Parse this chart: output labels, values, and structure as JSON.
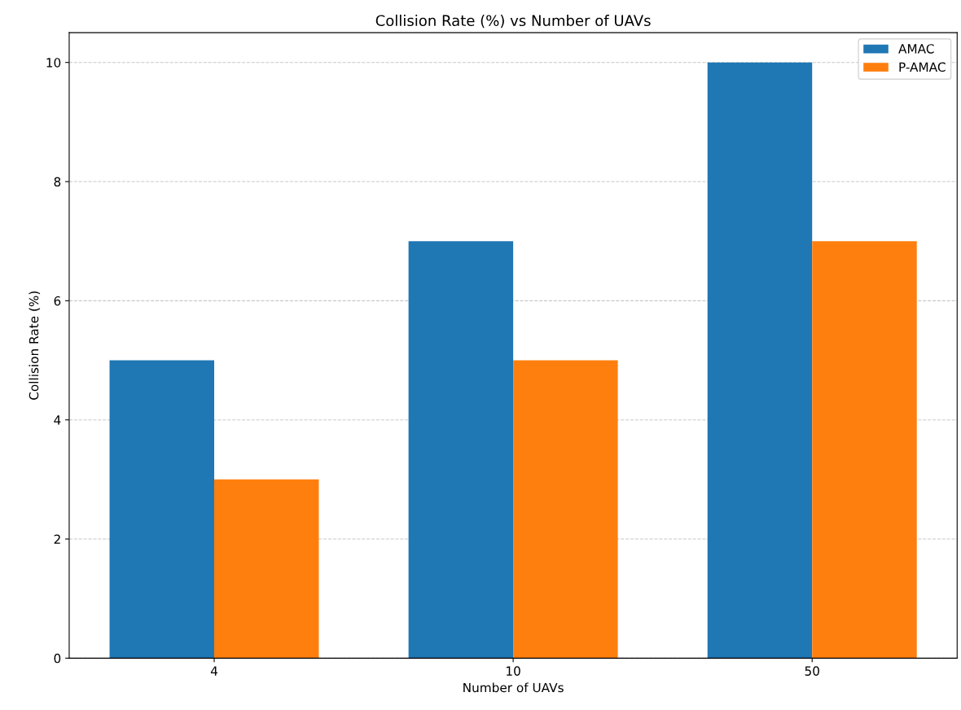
{
  "chart_data": {
    "type": "bar",
    "title": "Collision Rate (%) vs Number of UAVs",
    "xlabel": "Number of UAVs",
    "ylabel": "Collision Rate (%)",
    "categories": [
      "4",
      "10",
      "50"
    ],
    "series": [
      {
        "name": "AMAC",
        "color": "#1f77b4",
        "values": [
          5,
          7,
          10
        ]
      },
      {
        "name": "P-AMAC",
        "color": "#ff7f0e",
        "values": [
          3,
          5,
          7
        ]
      }
    ],
    "ylim": [
      0,
      10.5
    ],
    "yticks": [
      0,
      2,
      4,
      6,
      8,
      10
    ],
    "grid": "y",
    "line_style": "dashed",
    "legend": "top right"
  }
}
